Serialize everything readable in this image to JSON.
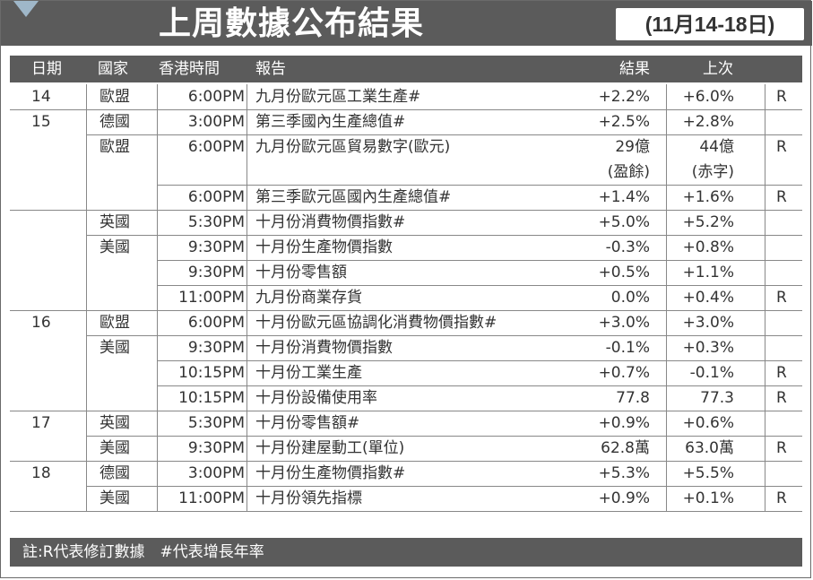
{
  "title": "上周數據公布結果",
  "period": "(11月14-18日)",
  "headers": {
    "date": "日期",
    "country": "國家",
    "time": "香港時間",
    "report": "報告",
    "result": "結果",
    "previous": "上次"
  },
  "rows": [
    {
      "date": "14",
      "country": "歐盟",
      "time": "6:00PM",
      "report": "九月份歐元區工業生產#",
      "result": "+2.2%",
      "previous": "+6.0%",
      "revised": "R"
    },
    {
      "date": "15",
      "country": "德國",
      "time": "3:00PM",
      "report": "第三季國內生產總值#",
      "result": "+2.5%",
      "previous": "+2.8%",
      "revised": ""
    },
    {
      "date": "",
      "country": "歐盟",
      "time": "6:00PM",
      "report": "九月份歐元區貿易數字(歐元)",
      "result": "29億",
      "result_note": "(盈餘)",
      "previous": "44億",
      "previous_note": "(赤字)",
      "revised": "R"
    },
    {
      "date": "",
      "country": "",
      "time": "6:00PM",
      "report": "第三季歐元區國內生產總值#",
      "result": "+1.4%",
      "previous": "+1.6%",
      "revised": "R"
    },
    {
      "date": "",
      "country": "英國",
      "time": "5:30PM",
      "report": "十月份消費物價指數#",
      "result": "+5.0%",
      "previous": "+5.2%",
      "revised": ""
    },
    {
      "date": "",
      "country": "美國",
      "time": "9:30PM",
      "report": "十月份生產物價指數",
      "result": "-0.3%",
      "previous": "+0.8%",
      "revised": ""
    },
    {
      "date": "",
      "country": "",
      "time": "9:30PM",
      "report": "十月份零售額",
      "result": "+0.5%",
      "previous": "+1.1%",
      "revised": ""
    },
    {
      "date": "",
      "country": "",
      "time": "11:00PM",
      "report": "九月份商業存貨",
      "result": "0.0%",
      "previous": "+0.4%",
      "revised": "R"
    },
    {
      "date": "16",
      "country": "歐盟",
      "time": "6:00PM",
      "report": "十月份歐元區協調化消費物價指數#",
      "result": "+3.0%",
      "previous": "+3.0%",
      "revised": ""
    },
    {
      "date": "",
      "country": "美國",
      "time": "9:30PM",
      "report": "十月份消費物價指數",
      "result": "-0.1%",
      "previous": "+0.3%",
      "revised": ""
    },
    {
      "date": "",
      "country": "",
      "time": "10:15PM",
      "report": "十月份工業生產",
      "result": "+0.7%",
      "previous": "-0.1%",
      "revised": "R"
    },
    {
      "date": "",
      "country": "",
      "time": "10:15PM",
      "report": "十月份設備使用率",
      "result": "77.8",
      "previous": "77.3",
      "revised": "R"
    },
    {
      "date": "17",
      "country": "英國",
      "time": "5:30PM",
      "report": "十月份零售額#",
      "result": "+0.9%",
      "previous": "+0.6%",
      "revised": ""
    },
    {
      "date": "",
      "country": "美國",
      "time": "9:30PM",
      "report": "十月份建屋動工(單位)",
      "result": "62.8萬",
      "previous": "63.0萬",
      "revised": "R"
    },
    {
      "date": "18",
      "country": "德國",
      "time": "3:00PM",
      "report": "十月份生產物價指數#",
      "result": "+5.3%",
      "previous": "+5.5%",
      "revised": ""
    },
    {
      "date": "",
      "country": "美國",
      "time": "11:00PM",
      "report": "十月份領先指標",
      "result": "+0.9%",
      "previous": "+0.1%",
      "revised": "R"
    }
  ],
  "footer": "註:R代表修訂數據　#代表增長年率"
}
